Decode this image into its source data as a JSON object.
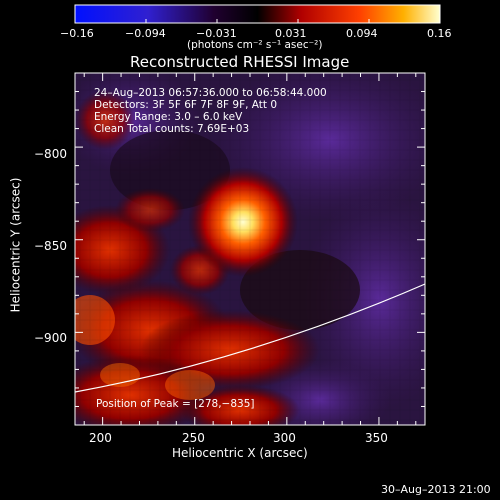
{
  "colorbar": {
    "ticks": [
      "−0.16",
      "−0.094",
      "−0.031",
      "0.031",
      "0.094",
      "0.16"
    ],
    "units": "(photons cm⁻² s⁻¹ asec⁻²)",
    "colors": [
      "#0000ff",
      "#5a2ec8",
      "#000000",
      "#c00000",
      "#ff5000",
      "#ffc800",
      "#ffffc8"
    ]
  },
  "plot": {
    "title": "Reconstructed RHESSI Image",
    "info_lines": [
      "24–Aug–2013 06:57:36.000 to 06:58:44.000",
      "Detectors: 3F 5F 6F 7F 8F 9F, Att 0",
      "Energy Range: 3.0 – 6.0 keV",
      "Clean     Total counts: 7.69E+03"
    ],
    "peak_label": "Position of Peak = [278,−835]",
    "x_label": "Heliocentric X (arcsec)",
    "y_label": "Heliocentric Y (arcsec)",
    "x_ticks": [
      "200",
      "250",
      "300",
      "350"
    ],
    "y_ticks": [
      "−800",
      "−850",
      "−900"
    ],
    "x_range": [
      185,
      375
    ],
    "y_range": [
      -950,
      -760
    ],
    "peak": [
      278,
      -835
    ]
  },
  "timestamp": "30–Aug–2013 21:00"
}
